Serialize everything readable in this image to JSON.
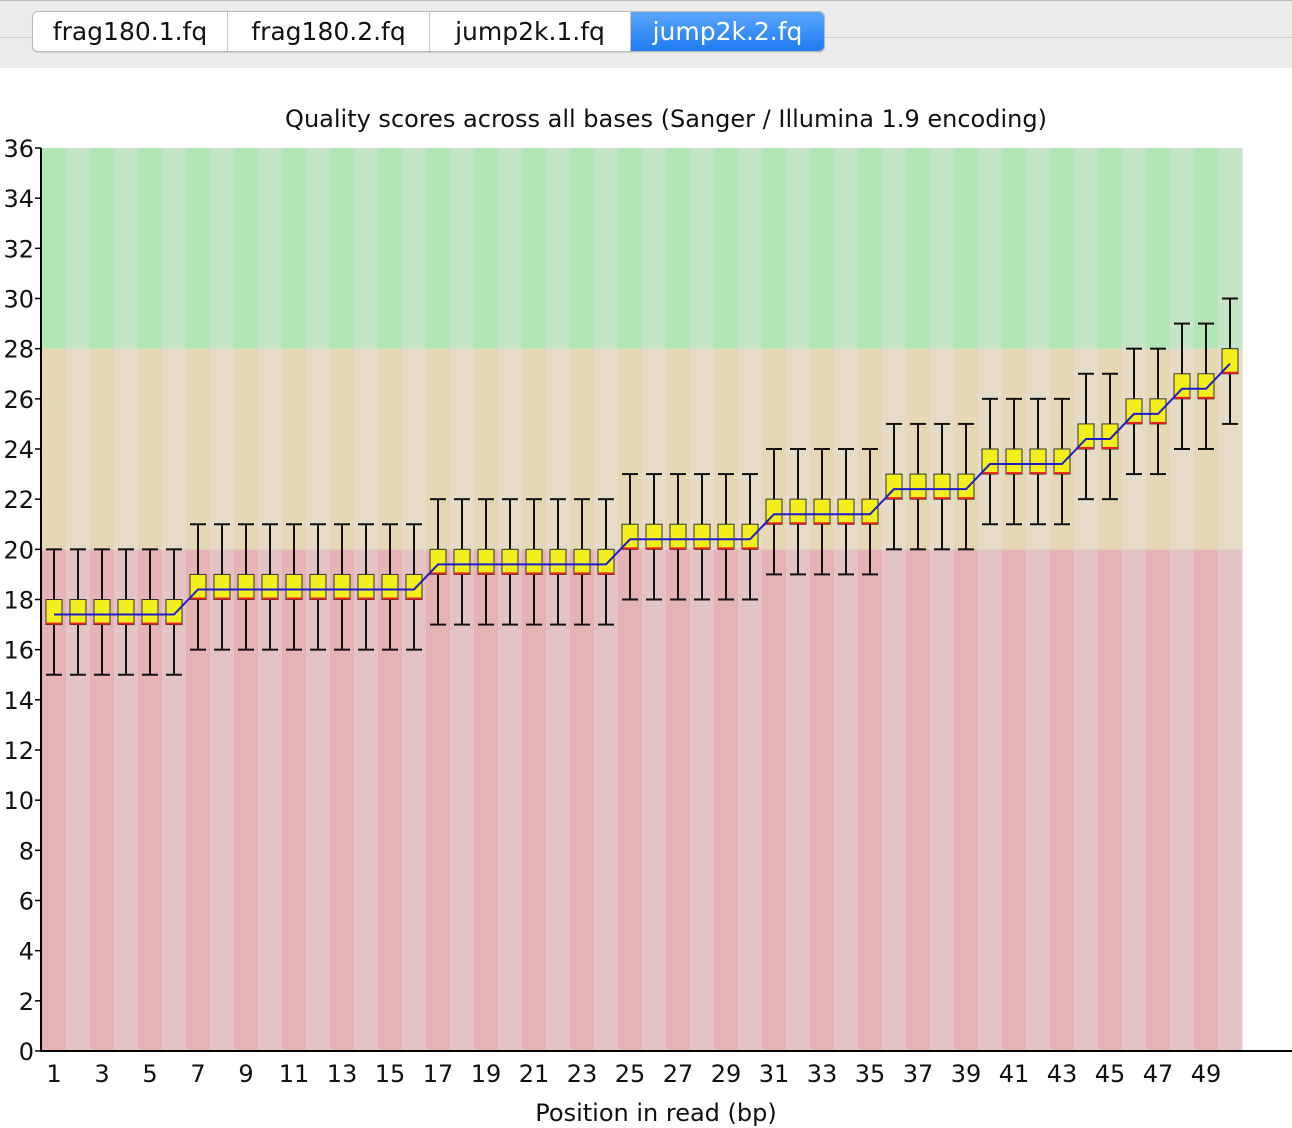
{
  "tabs": [
    {
      "label": "frag180.1.fq",
      "active": false
    },
    {
      "label": "frag180.2.fq",
      "active": false
    },
    {
      "label": "jump2k.1.fq",
      "active": false
    },
    {
      "label": "jump2k.2.fq",
      "active": true
    }
  ],
  "chart_data": {
    "type": "boxplot",
    "title": "Quality scores across all bases (Sanger / Illumina 1.9 encoding)",
    "xlabel": "Position in read (bp)",
    "ylabel": "",
    "ylim": [
      0,
      36
    ],
    "yticks": [
      0,
      2,
      4,
      6,
      8,
      10,
      12,
      14,
      16,
      18,
      20,
      22,
      24,
      26,
      28,
      30,
      32,
      34,
      36
    ],
    "xtick_labels": [
      "1",
      "3",
      "5",
      "7",
      "9",
      "11",
      "13",
      "15",
      "17",
      "19",
      "21",
      "23",
      "25",
      "27",
      "29",
      "31",
      "33",
      "35",
      "37",
      "39",
      "41",
      "43",
      "45",
      "47",
      "49"
    ],
    "grid": false,
    "zones": [
      {
        "name": "poor",
        "from": 0,
        "to": 20,
        "colors": [
          "#e6b3b4",
          "#e3c4c5"
        ]
      },
      {
        "name": "reasonable",
        "from": 20,
        "to": 28,
        "colors": [
          "#e6d8b4",
          "#e6dbc6"
        ]
      },
      {
        "name": "good",
        "from": 28,
        "to": 36,
        "colors": [
          "#b3e6b5",
          "#c5e4c6"
        ]
      }
    ],
    "colors": {
      "box_fill": "#f3ef1b",
      "box_edge": "#333333",
      "median": "#e8211d",
      "mean_line": "#1e1ec8",
      "whisker": "#111111"
    },
    "positions": [
      1,
      2,
      3,
      4,
      5,
      6,
      7,
      8,
      9,
      10,
      11,
      12,
      13,
      14,
      15,
      16,
      17,
      18,
      19,
      20,
      21,
      22,
      23,
      24,
      25,
      26,
      27,
      28,
      29,
      30,
      31,
      32,
      33,
      34,
      35,
      36,
      37,
      38,
      39,
      40,
      41,
      42,
      43,
      44,
      45,
      46,
      47,
      48,
      49,
      50
    ],
    "series": [
      {
        "stat": "q1",
        "values": [
          17,
          17,
          17,
          17,
          17,
          17,
          18,
          18,
          18,
          18,
          18,
          18,
          18,
          18,
          18,
          18,
          19,
          19,
          19,
          19,
          19,
          19,
          19,
          19,
          20,
          20,
          20,
          20,
          20,
          20,
          21,
          21,
          21,
          21,
          21,
          22,
          22,
          22,
          22,
          23,
          23,
          23,
          23,
          24,
          24,
          25,
          25,
          26,
          26,
          27
        ]
      },
      {
        "stat": "median",
        "values": [
          17,
          17,
          17,
          17,
          17,
          17,
          18,
          18,
          18,
          18,
          18,
          18,
          18,
          18,
          18,
          18,
          19,
          19,
          19,
          19,
          19,
          19,
          19,
          19,
          20,
          20,
          20,
          20,
          20,
          20,
          21,
          21,
          21,
          21,
          21,
          22,
          22,
          22,
          22,
          23,
          23,
          23,
          23,
          24,
          24,
          25,
          25,
          26,
          26,
          27
        ]
      },
      {
        "stat": "q3",
        "values": [
          18,
          18,
          18,
          18,
          18,
          18,
          19,
          19,
          19,
          19,
          19,
          19,
          19,
          19,
          19,
          19,
          20,
          20,
          20,
          20,
          20,
          20,
          20,
          20,
          21,
          21,
          21,
          21,
          21,
          21,
          22,
          22,
          22,
          22,
          22,
          23,
          23,
          23,
          23,
          24,
          24,
          24,
          24,
          25,
          25,
          26,
          26,
          27,
          27,
          28
        ]
      },
      {
        "stat": "mean",
        "values": [
          17.4,
          17.4,
          17.4,
          17.4,
          17.4,
          17.4,
          18.4,
          18.4,
          18.4,
          18.4,
          18.4,
          18.4,
          18.4,
          18.4,
          18.4,
          18.4,
          19.4,
          19.4,
          19.4,
          19.4,
          19.4,
          19.4,
          19.4,
          19.4,
          20.4,
          20.4,
          20.4,
          20.4,
          20.4,
          20.4,
          21.4,
          21.4,
          21.4,
          21.4,
          21.4,
          22.4,
          22.4,
          22.4,
          22.4,
          23.4,
          23.4,
          23.4,
          23.4,
          24.4,
          24.4,
          25.4,
          25.4,
          26.4,
          26.4,
          27.4
        ]
      },
      {
        "stat": "whisker_low",
        "values": [
          15,
          15,
          15,
          15,
          15,
          15,
          16,
          16,
          16,
          16,
          16,
          16,
          16,
          16,
          16,
          16,
          17,
          17,
          17,
          17,
          17,
          17,
          17,
          17,
          18,
          18,
          18,
          18,
          18,
          18,
          19,
          19,
          19,
          19,
          19,
          20,
          20,
          20,
          20,
          21,
          21,
          21,
          21,
          22,
          22,
          23,
          23,
          24,
          24,
          25
        ]
      },
      {
        "stat": "whisker_high",
        "values": [
          20,
          20,
          20,
          20,
          20,
          20,
          21,
          21,
          21,
          21,
          21,
          21,
          21,
          21,
          21,
          21,
          22,
          22,
          22,
          22,
          22,
          22,
          22,
          22,
          23,
          23,
          23,
          23,
          23,
          23,
          24,
          24,
          24,
          24,
          24,
          25,
          25,
          25,
          25,
          26,
          26,
          26,
          26,
          27,
          27,
          28,
          28,
          29,
          29,
          30
        ]
      }
    ]
  }
}
